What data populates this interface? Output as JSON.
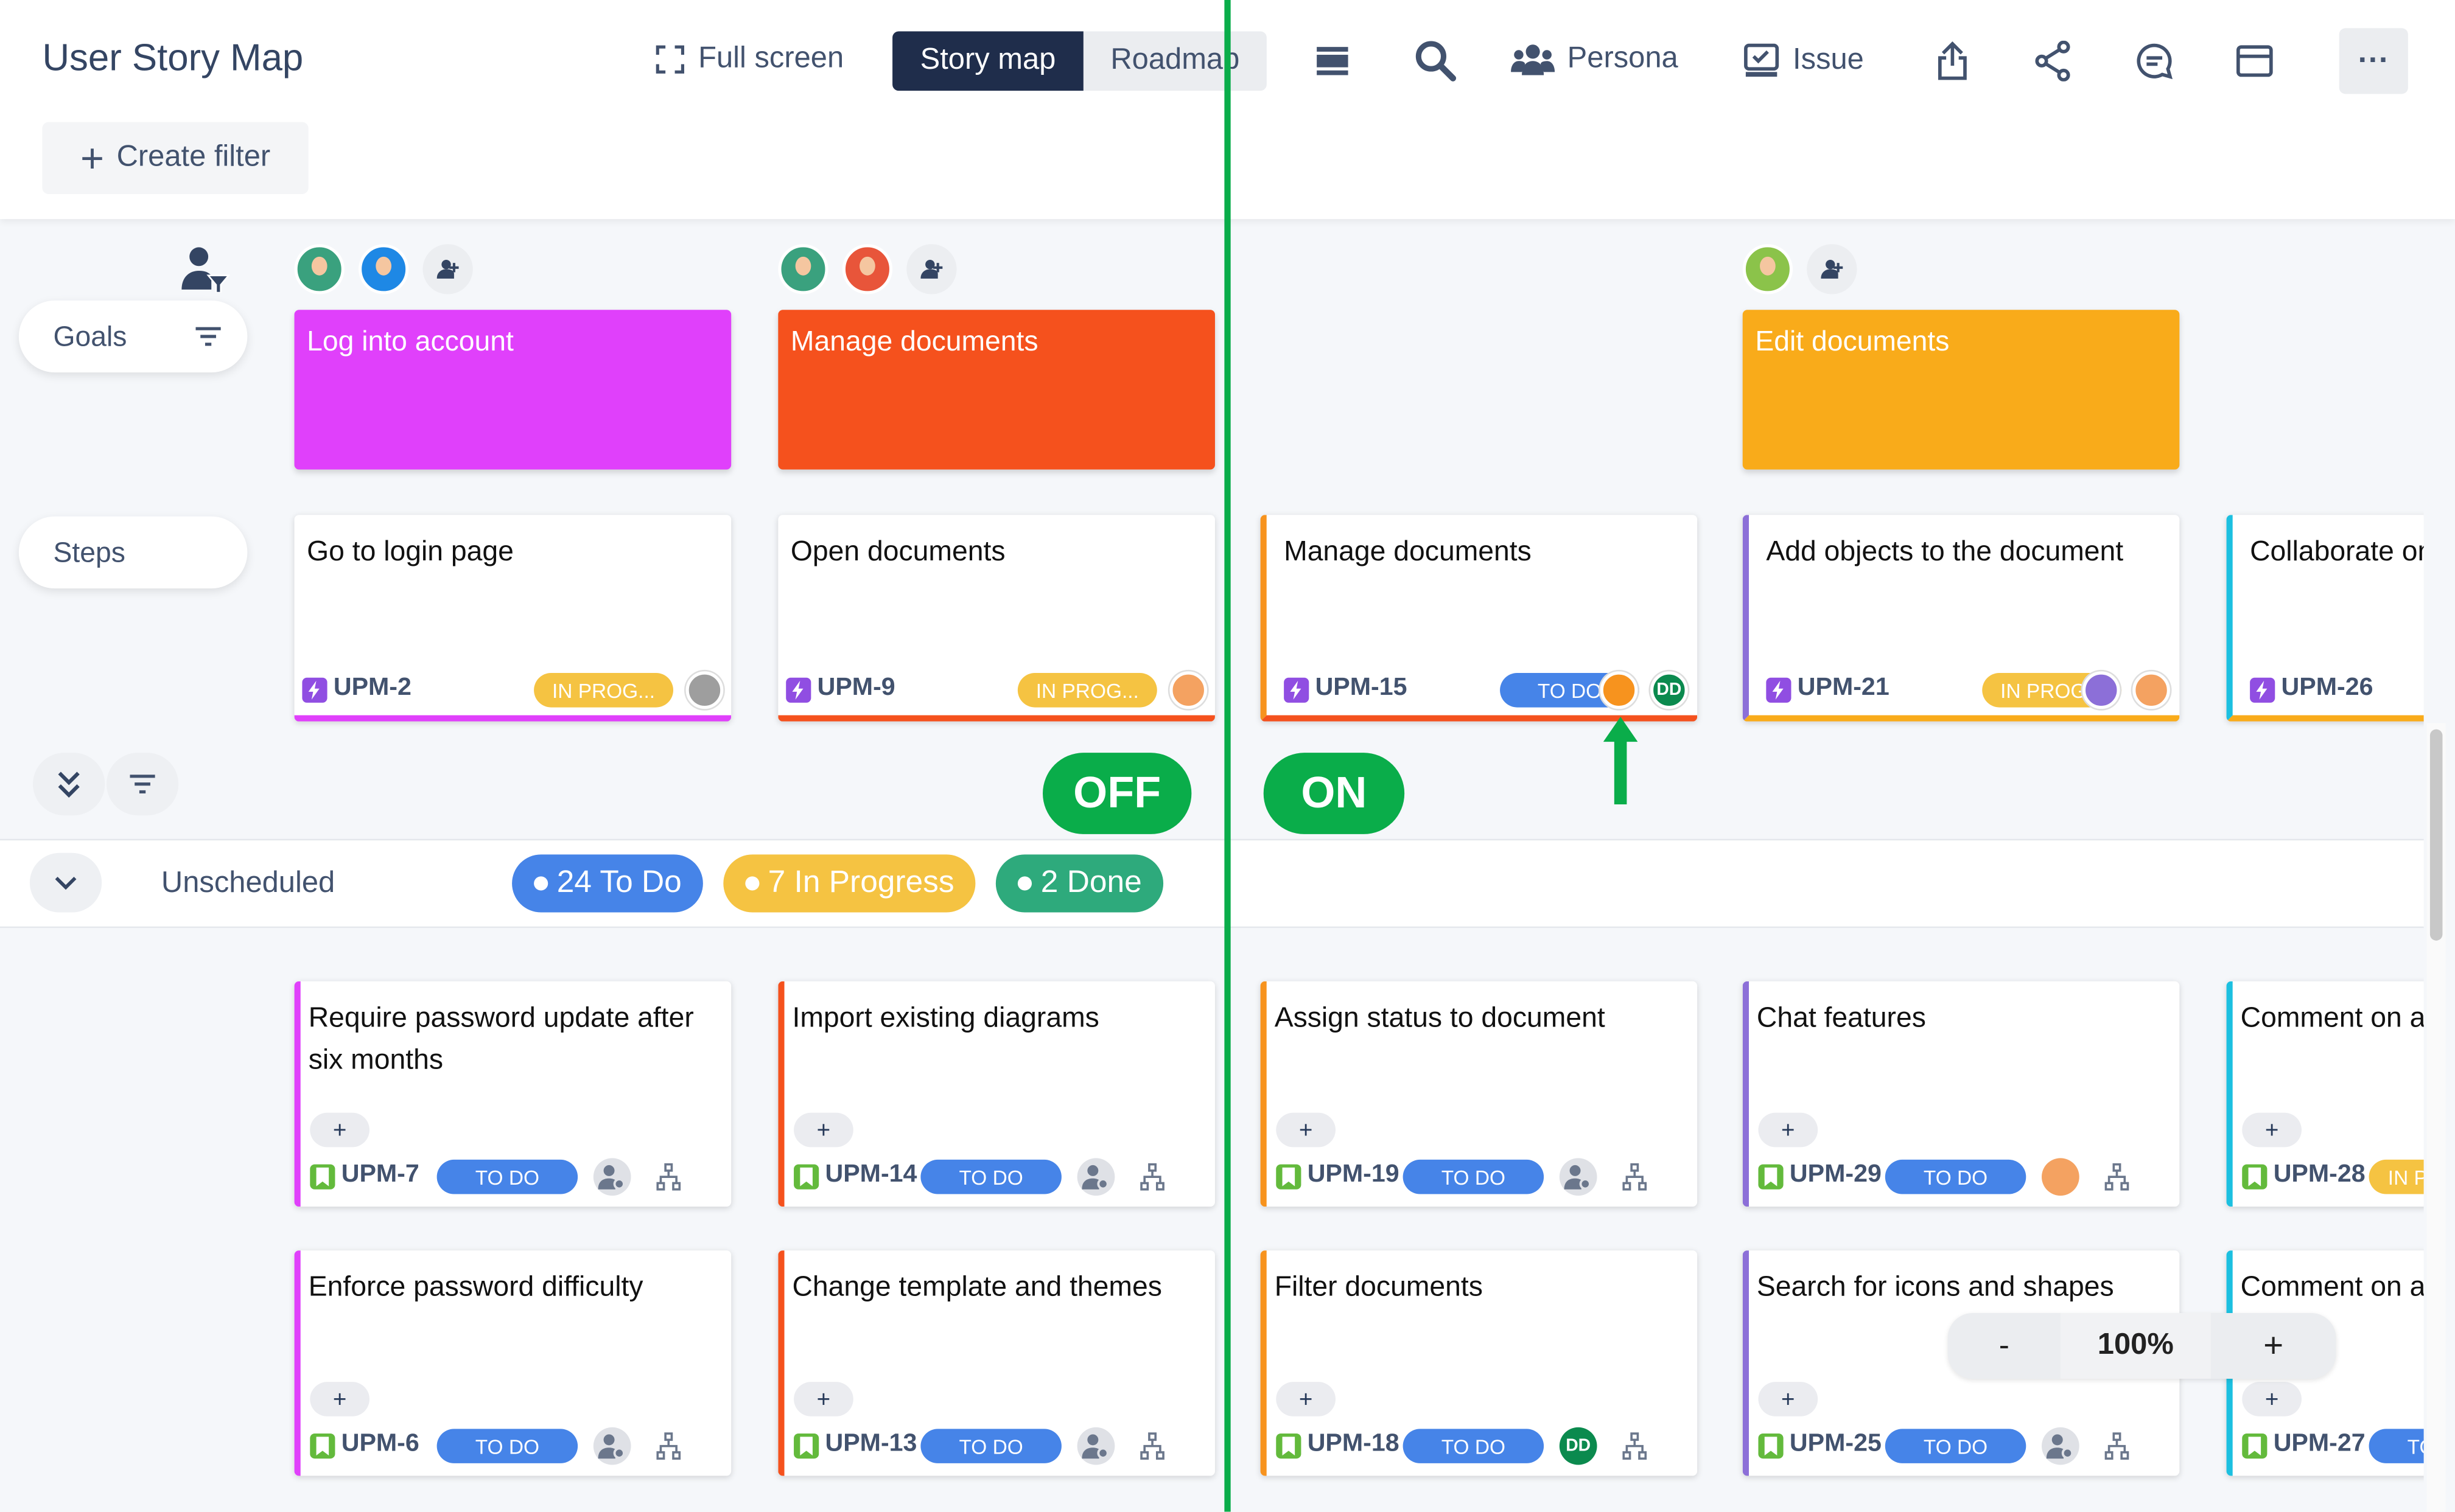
{
  "header": {
    "title": "User Story Map",
    "fullscreen_label": "Full screen",
    "tabs": [
      {
        "label": "Story map",
        "active": true
      },
      {
        "label": "Roadmap",
        "active": false
      }
    ],
    "persona_label": "Persona",
    "issue_label": "Issue",
    "create_filter_label": "Create filter"
  },
  "rows": {
    "goals_label": "Goals",
    "steps_label": "Steps"
  },
  "toggles": {
    "off_label": "OFF",
    "on_label": "ON"
  },
  "release": {
    "name": "Unscheduled",
    "counts": [
      {
        "label": "24 To Do",
        "color": "#4684e8"
      },
      {
        "label": "7 In Progress",
        "color": "#f5c342"
      },
      {
        "label": "2 Done",
        "color": "#2eaa7c"
      }
    ]
  },
  "zoom": {
    "minus": "-",
    "value": "100%",
    "plus": "+"
  },
  "colors": {
    "annotation_green": "#0aad4a",
    "todo": "#4684e8",
    "inprog": "#f5c342"
  },
  "columns": [
    {
      "goal": {
        "title": "Log into account",
        "color": "#e040fb"
      },
      "personas": [
        "#3aa17e",
        "#1e88e5"
      ],
      "step": {
        "title": "Go to login page",
        "key": "UPM-2",
        "status": "IN PROG...",
        "status_type": "inprog",
        "left": "",
        "bottom": "#e040fb",
        "avatars": [
          {
            "color": "#9e9e9e",
            "text": ""
          }
        ]
      },
      "stories": [
        {
          "title": "Require password update after six months",
          "key": "UPM-7",
          "status": "TO DO",
          "status_type": "todo",
          "avatar": "unassigned"
        },
        {
          "title": "Enforce password difficulty",
          "key": "UPM-6",
          "status": "TO DO",
          "status_type": "todo",
          "avatar": "unassigned"
        }
      ],
      "story_color": "#e040fb"
    },
    {
      "goal": {
        "title": "Manage documents",
        "color": "#f5511d"
      },
      "personas": [
        "#3aa17e",
        "#e8553a"
      ],
      "step": {
        "title": "Open documents",
        "key": "UPM-9",
        "status": "IN PROG...",
        "status_type": "inprog",
        "left": "",
        "bottom": "#f5511d",
        "avatars": [
          {
            "color": "#f4a261",
            "text": ""
          }
        ]
      },
      "stories": [
        {
          "title": "Import existing diagrams",
          "key": "UPM-14",
          "status": "TO DO",
          "status_type": "todo",
          "avatar": "unassigned"
        },
        {
          "title": "Change template and themes",
          "key": "UPM-13",
          "status": "TO DO",
          "status_type": "todo",
          "avatar": "unassigned"
        }
      ],
      "story_color": "#f5511d"
    },
    {
      "goal": null,
      "personas": [],
      "step": {
        "title": "Manage documents",
        "key": "UPM-15",
        "status": "TO DO",
        "status_type": "todo",
        "left": "#f7931e",
        "bottom": "#f4511e",
        "avatars": [
          {
            "color": "#f7931e",
            "text": ""
          },
          {
            "color": "#0b8a4e",
            "text": "DD"
          }
        ]
      },
      "stories": [
        {
          "title": "Assign status to document",
          "key": "UPM-19",
          "status": "TO DO",
          "status_type": "todo",
          "avatar": "unassigned"
        },
        {
          "title": "Filter documents",
          "key": "UPM-18",
          "status": "TO DO",
          "status_type": "todo",
          "avatar": "DD"
        }
      ],
      "story_color": "#f7931e"
    },
    {
      "goal": {
        "title": "Edit documents",
        "color": "#f9ab1a"
      },
      "personas": [
        "#8bc34a"
      ],
      "step": {
        "title": "Add objects to the document",
        "key": "UPM-21",
        "status": "IN PROG...",
        "status_type": "inprog",
        "left": "#8c6fd8",
        "bottom": "#f9ab1a",
        "avatars": [
          {
            "color": "#8c6fd8",
            "text": ""
          },
          {
            "color": "#f4a261",
            "text": ""
          }
        ]
      },
      "stories": [
        {
          "title": "Chat features",
          "key": "UPM-29",
          "status": "TO DO",
          "status_type": "todo",
          "avatar": "face"
        },
        {
          "title": "Search for icons and shapes",
          "key": "UPM-25",
          "status": "TO DO",
          "status_type": "todo",
          "avatar": "unassigned"
        }
      ],
      "story_color": "#8c6fd8"
    },
    {
      "goal": null,
      "personas": [],
      "step": {
        "title": "Collaborate on d",
        "key": "UPM-26",
        "status": "IN PROG...",
        "status_type": "inprog",
        "left": "#1cc0e0",
        "bottom": "#f9ab1a",
        "avatars": []
      },
      "stories": [
        {
          "title": "Comment on a",
          "key": "UPM-28",
          "status": "IN PROG...",
          "status_type": "inprog",
          "avatar": ""
        },
        {
          "title": "Comment on a",
          "key": "UPM-27",
          "status": "TO DO",
          "status_type": "todo",
          "avatar": ""
        }
      ],
      "story_color": "#1cc0e0"
    }
  ]
}
